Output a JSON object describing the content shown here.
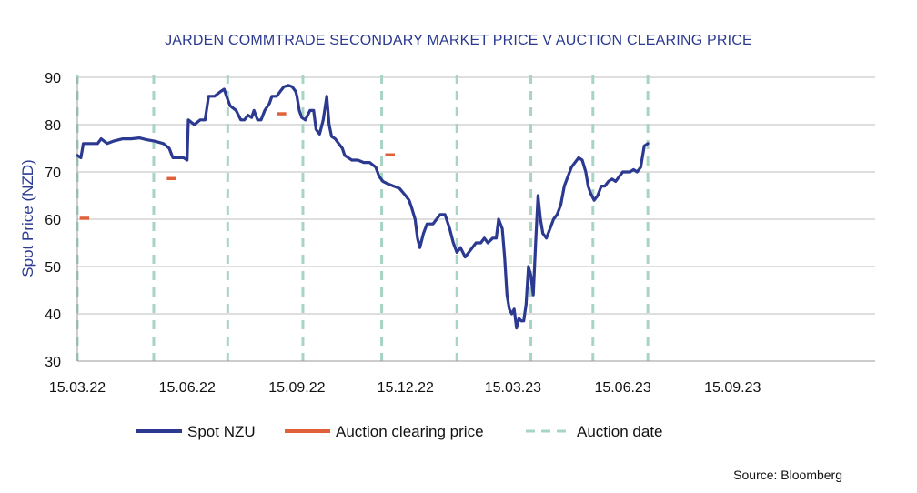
{
  "colors": {
    "spot": "#2b3990",
    "auction": "#e0603a",
    "auction_date": "#a8d5c2",
    "title": "#2b3990",
    "grid": "#bdbdbd"
  },
  "chart_data": {
    "type": "line",
    "title": "JARDEN COMMTRADE SECONDARY MARKET PRICE V AUCTION CLEARING PRICE",
    "ylabel": "Spot Price (NZD)",
    "xlabel": "",
    "ylim": [
      30,
      90
    ],
    "yticks": [
      30,
      40,
      50,
      60,
      70,
      80,
      90
    ],
    "xlim": [
      0,
      670
    ],
    "xticks": [
      {
        "label": "15.03.22",
        "x": 0
      },
      {
        "label": "15.06.22",
        "x": 92
      },
      {
        "label": "15.09.22",
        "x": 184
      },
      {
        "label": "15.12.22",
        "x": 275
      },
      {
        "label": "15.03.23",
        "x": 365
      },
      {
        "label": "15.06.23",
        "x": 457
      },
      {
        "label": "15.09.23",
        "x": 549
      }
    ],
    "grid": "horizontal",
    "legend_position": "bottom",
    "series": [
      {
        "name": "Spot NZU",
        "style": "line",
        "points": [
          [
            0,
            73.5
          ],
          [
            3,
            73
          ],
          [
            5,
            76
          ],
          [
            12,
            76
          ],
          [
            17,
            76
          ],
          [
            20,
            77
          ],
          [
            25,
            76
          ],
          [
            30,
            76.5
          ],
          [
            38,
            77
          ],
          [
            45,
            77
          ],
          [
            52,
            77.2
          ],
          [
            58,
            76.8
          ],
          [
            65,
            76.5
          ],
          [
            72,
            76
          ],
          [
            77,
            75
          ],
          [
            80,
            73
          ],
          [
            85,
            73
          ],
          [
            89,
            73
          ],
          [
            92,
            72.5
          ],
          [
            93,
            81
          ],
          [
            98,
            80
          ],
          [
            103,
            81
          ],
          [
            107,
            81
          ],
          [
            110,
            86
          ],
          [
            115,
            86
          ],
          [
            120,
            87
          ],
          [
            123,
            87.5
          ],
          [
            125,
            86
          ],
          [
            128,
            84
          ],
          [
            133,
            83
          ],
          [
            137,
            81
          ],
          [
            140,
            81
          ],
          [
            143,
            82
          ],
          [
            146,
            81.5
          ],
          [
            148,
            83
          ],
          [
            151,
            81
          ],
          [
            154,
            81
          ],
          [
            157,
            83
          ],
          [
            161,
            84.5
          ],
          [
            163,
            86
          ],
          [
            167,
            86
          ],
          [
            170,
            87
          ],
          [
            173,
            88
          ],
          [
            177,
            88.3
          ],
          [
            180,
            88
          ],
          [
            183,
            87
          ],
          [
            184,
            86
          ],
          [
            186,
            83
          ],
          [
            188,
            81.5
          ],
          [
            191,
            81
          ],
          [
            195,
            83
          ],
          [
            198,
            83
          ],
          [
            200,
            79
          ],
          [
            203,
            78
          ],
          [
            206,
            81
          ],
          [
            209,
            86
          ],
          [
            211,
            80
          ],
          [
            213,
            77.5
          ],
          [
            216,
            77
          ],
          [
            219,
            76
          ],
          [
            222,
            75
          ],
          [
            224,
            73.5
          ],
          [
            227,
            73
          ],
          [
            230,
            72.5
          ],
          [
            235,
            72.5
          ],
          [
            240,
            72
          ],
          [
            245,
            72
          ],
          [
            250,
            71
          ],
          [
            253,
            69
          ],
          [
            256,
            68
          ],
          [
            260,
            67.5
          ],
          [
            265,
            67
          ],
          [
            270,
            66.5
          ],
          [
            275,
            65
          ],
          [
            278,
            64
          ],
          [
            280,
            62.5
          ],
          [
            283,
            60
          ],
          [
            285,
            56
          ],
          [
            287,
            54
          ],
          [
            290,
            57
          ],
          [
            293,
            59
          ],
          [
            298,
            59
          ],
          [
            301,
            60
          ],
          [
            304,
            61
          ],
          [
            308,
            61
          ],
          [
            312,
            58
          ],
          [
            315,
            55
          ],
          [
            318,
            53
          ],
          [
            321,
            54
          ],
          [
            325,
            52
          ],
          [
            328,
            53
          ],
          [
            331,
            54
          ],
          [
            334,
            55
          ],
          [
            338,
            55
          ],
          [
            341,
            56
          ],
          [
            344,
            55
          ],
          [
            348,
            56
          ],
          [
            351,
            56
          ],
          [
            353,
            60
          ],
          [
            356,
            58
          ],
          [
            358,
            52
          ],
          [
            360,
            44
          ],
          [
            362,
            41
          ],
          [
            364,
            40
          ],
          [
            366,
            41
          ],
          [
            368,
            37
          ],
          [
            370,
            39
          ],
          [
            372,
            38.5
          ],
          [
            374,
            38.5
          ],
          [
            376,
            42
          ],
          [
            378,
            50
          ],
          [
            380,
            48
          ],
          [
            382,
            44
          ],
          [
            384,
            55
          ],
          [
            386,
            65
          ],
          [
            388,
            60
          ],
          [
            390,
            57
          ],
          [
            393,
            56
          ],
          [
            396,
            58
          ],
          [
            399,
            60
          ],
          [
            402,
            61
          ],
          [
            405,
            63
          ],
          [
            408,
            67
          ],
          [
            411,
            69
          ],
          [
            414,
            71
          ],
          [
            417,
            72
          ],
          [
            420,
            73
          ],
          [
            423,
            72.5
          ],
          [
            426,
            70
          ],
          [
            428,
            67
          ],
          [
            430,
            65.5
          ],
          [
            433,
            64
          ],
          [
            436,
            65
          ],
          [
            439,
            67
          ],
          [
            442,
            67
          ],
          [
            445,
            68
          ],
          [
            448,
            68.5
          ],
          [
            451,
            68
          ],
          [
            454,
            69
          ],
          [
            457,
            70
          ],
          [
            460,
            70
          ],
          [
            463,
            70
          ],
          [
            466,
            70.5
          ],
          [
            469,
            70
          ],
          [
            472,
            71
          ],
          [
            475,
            75.5
          ],
          [
            478,
            76
          ]
        ]
      },
      {
        "name": "Auction clearing price",
        "style": "segments",
        "segments": [
          {
            "x0": 2,
            "x1": 10,
            "value": 60.2
          },
          {
            "x0": 75,
            "x1": 83,
            "value": 68.6
          },
          {
            "x0": 167,
            "x1": 175,
            "value": 82.3
          },
          {
            "x0": 258,
            "x1": 266,
            "value": 73.6
          }
        ]
      },
      {
        "name": "Auction date",
        "style": "vlines",
        "x": [
          0,
          64,
          126,
          189,
          255,
          318,
          380,
          432,
          478
        ]
      }
    ]
  },
  "source": "Source: Bloomberg"
}
